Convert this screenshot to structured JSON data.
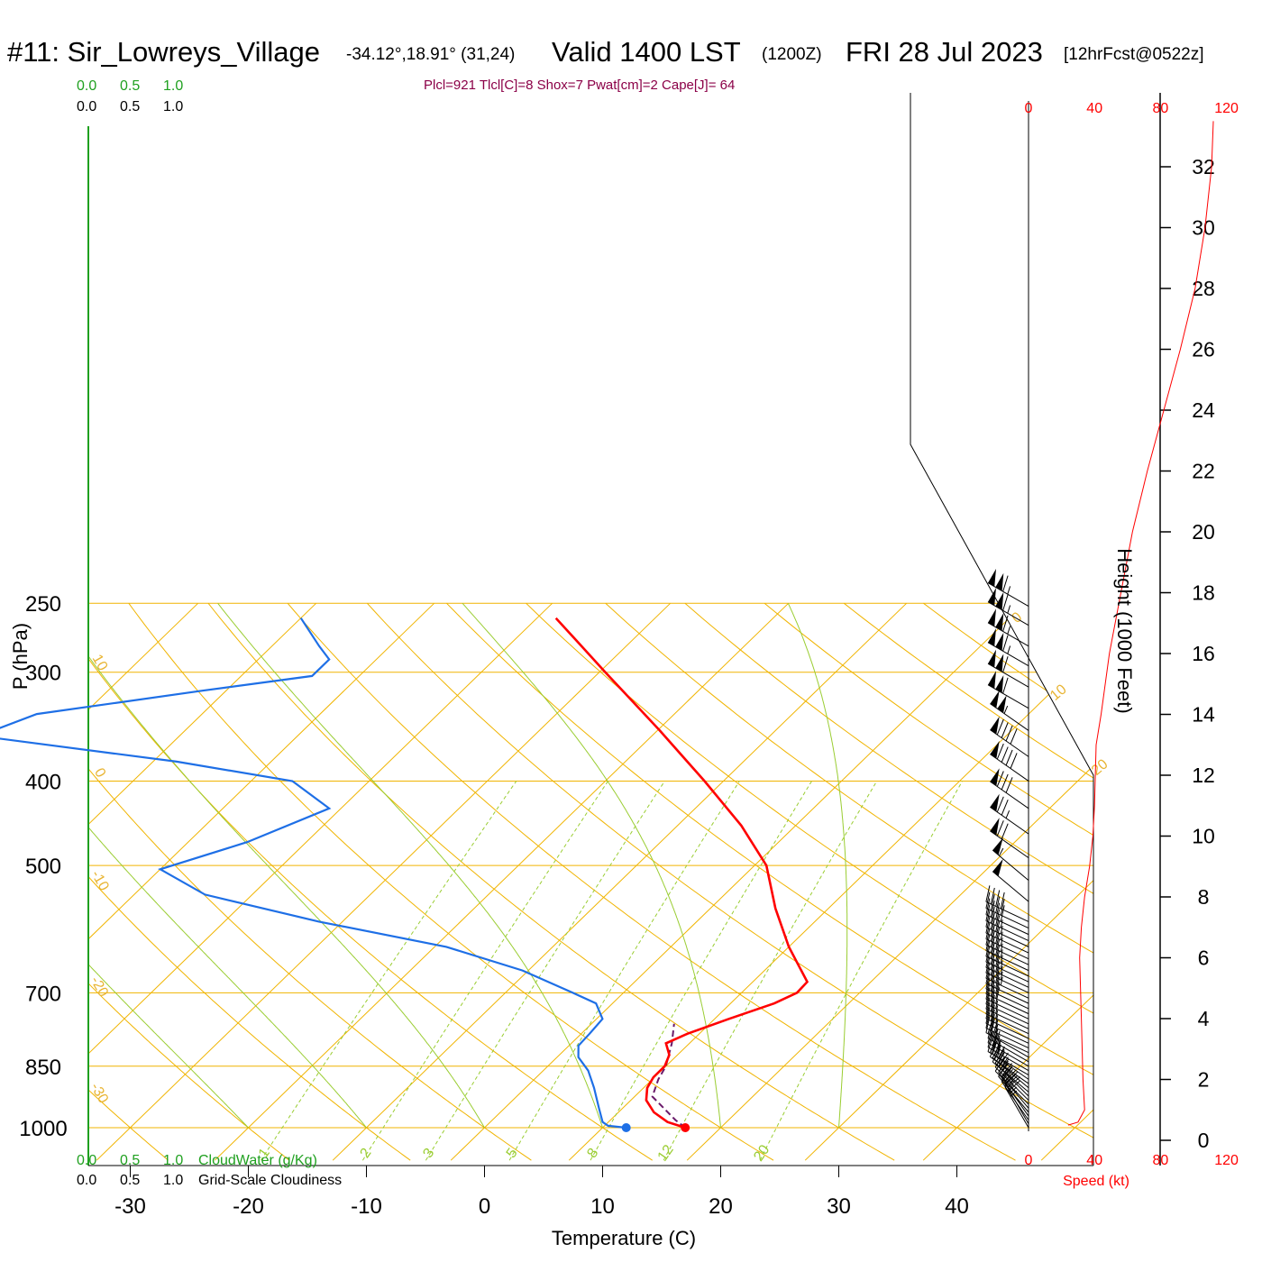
{
  "header": {
    "station": "#11: Sir_Lowreys_Village",
    "coords": "-34.12°,18.91° (31,24)",
    "valid": "Valid 1400 LST",
    "zulu": "(1200Z)",
    "date": "FRI 28 Jul 2023",
    "forecast": "[12hrFcst@0522z]",
    "params": "Plcl=921 Tlcl[C]=8 Shox=7 Pwat[cm]=2 Cape[J]= 64"
  },
  "legend": {
    "top_green": [
      "0.0",
      "0.5",
      "1.0"
    ],
    "top_black": [
      "0.0",
      "0.5",
      "1.0"
    ],
    "bottom_green": [
      "0.0",
      "0.5",
      "1.0"
    ],
    "bottom_black": [
      "0.0",
      "0.5",
      "1.0"
    ],
    "cloudwater_label": "CloudWater (g/Kg)",
    "cloudiness_label": "Grid-Scale Cloudiness"
  },
  "axes": {
    "x_title": "Temperature (C)",
    "y_title": "P (hPa)",
    "height_title": "Height (1000 Feet)",
    "speed_title": "Speed (kt)"
  },
  "colors": {
    "temperature": "#ff0000",
    "dewpoint": "#1e6fe6",
    "parcel": "#6a1a6a",
    "isotherm": "#f0b400",
    "dry_adiabat": "#f0b400",
    "moist_adiabat": "#9acd32",
    "mixing_ratio": "#9acd32",
    "wind_speed": "#ff0000"
  },
  "chart_data": {
    "type": "skew-t",
    "x_ticks": [
      -30,
      -20,
      -10,
      0,
      10,
      20,
      30,
      40
    ],
    "pressure_ticks": [
      250,
      300,
      400,
      500,
      700,
      850,
      1000
    ],
    "height_ticks_kft": [
      0,
      2,
      4,
      6,
      8,
      10,
      12,
      14,
      16,
      18,
      20,
      22,
      24,
      26,
      28,
      30,
      32
    ],
    "speed_ticks_kt": [
      0,
      40,
      80,
      120
    ],
    "isotherm_labels": [
      0,
      10,
      20,
      30
    ],
    "dry_adiabat_labels": [
      10,
      0,
      -10,
      -20,
      -30
    ],
    "mixing_ratio_labels": [
      "1",
      "2",
      "3",
      "5",
      "8",
      "12",
      "20"
    ],
    "temperature_profile": [
      {
        "p": 1000,
        "t": 17.0
      },
      {
        "p": 985,
        "t": 15.0
      },
      {
        "p": 960,
        "t": 13.0
      },
      {
        "p": 930,
        "t": 11.3
      },
      {
        "p": 900,
        "t": 10.3
      },
      {
        "p": 875,
        "t": 9.9
      },
      {
        "p": 850,
        "t": 9.9
      },
      {
        "p": 825,
        "t": 9.3
      },
      {
        "p": 800,
        "t": 8.0
      },
      {
        "p": 780,
        "t": 9.0
      },
      {
        "p": 750,
        "t": 11.2
      },
      {
        "p": 720,
        "t": 13.7
      },
      {
        "p": 700,
        "t": 14.7
      },
      {
        "p": 680,
        "t": 14.6
      },
      {
        "p": 620,
        "t": 10.0
      },
      {
        "p": 560,
        "t": 5.5
      },
      {
        "p": 500,
        "t": 1.0
      },
      {
        "p": 450,
        "t": -4.6
      },
      {
        "p": 400,
        "t": -11.6
      },
      {
        "p": 350,
        "t": -19.8
      },
      {
        "p": 300,
        "t": -29.5
      },
      {
        "p": 260,
        "t": -38.4
      }
    ],
    "dewpoint_profile": [
      {
        "p": 1000,
        "t": 12.0
      },
      {
        "p": 995,
        "t": 10.3
      },
      {
        "p": 985,
        "t": 9.5
      },
      {
        "p": 950,
        "t": 8.0
      },
      {
        "p": 900,
        "t": 5.8
      },
      {
        "p": 860,
        "t": 3.8
      },
      {
        "p": 830,
        "t": 1.8
      },
      {
        "p": 805,
        "t": 0.8
      },
      {
        "p": 780,
        "t": 0.7
      },
      {
        "p": 750,
        "t": 0.5
      },
      {
        "p": 720,
        "t": -1.4
      },
      {
        "p": 700,
        "t": -4.3
      },
      {
        "p": 660,
        "t": -10.5
      },
      {
        "p": 620,
        "t": -19.0
      },
      {
        "p": 580,
        "t": -32.0
      },
      {
        "p": 540,
        "t": -44.0
      },
      {
        "p": 505,
        "t": -50.0
      },
      {
        "p": 470,
        "t": -45.0
      },
      {
        "p": 430,
        "t": -41.0
      },
      {
        "p": 400,
        "t": -46.5
      },
      {
        "p": 380,
        "t": -58.0
      },
      {
        "p": 355,
        "t": -77.0
      },
      {
        "p": 335,
        "t": -74.0
      },
      {
        "p": 315,
        "t": -62.0
      },
      {
        "p": 303,
        "t": -54.0
      },
      {
        "p": 290,
        "t": -54.0
      },
      {
        "p": 280,
        "t": -56.0
      },
      {
        "p": 260,
        "t": -60.0
      }
    ],
    "parcel_profile": [
      {
        "p": 1000,
        "t": 17.0
      },
      {
        "p": 980,
        "t": 15.5
      },
      {
        "p": 950,
        "t": 13.5
      },
      {
        "p": 921,
        "t": 11.5
      },
      {
        "p": 880,
        "t": 10.5
      },
      {
        "p": 850,
        "t": 10.0
      },
      {
        "p": 800,
        "t": 8.5
      },
      {
        "p": 760,
        "t": 7.0
      }
    ],
    "wind_speed_profile_kt": [
      {
        "h": 0.5,
        "s": 24
      },
      {
        "h": 0.6,
        "s": 30
      },
      {
        "h": 1.0,
        "s": 34
      },
      {
        "h": 2.0,
        "s": 33
      },
      {
        "h": 4.0,
        "s": 32
      },
      {
        "h": 6.0,
        "s": 31
      },
      {
        "h": 7.0,
        "s": 32
      },
      {
        "h": 8.0,
        "s": 34
      },
      {
        "h": 9.0,
        "s": 37
      },
      {
        "h": 10.0,
        "s": 39
      },
      {
        "h": 11.0,
        "s": 40
      },
      {
        "h": 13.0,
        "s": 41
      },
      {
        "h": 14.0,
        "s": 44
      },
      {
        "h": 16.0,
        "s": 49
      },
      {
        "h": 18.0,
        "s": 56
      },
      {
        "h": 20.0,
        "s": 63
      },
      {
        "h": 22.0,
        "s": 72
      },
      {
        "h": 24.0,
        "s": 82
      },
      {
        "h": 26.0,
        "s": 92
      },
      {
        "h": 28.0,
        "s": 101
      },
      {
        "h": 30.0,
        "s": 107
      },
      {
        "h": 32.0,
        "s": 111
      },
      {
        "h": 33.5,
        "s": 112
      }
    ],
    "wind_barbs": [
      {
        "p": 1000,
        "dir": 330,
        "spd": 25
      },
      {
        "p": 990,
        "dir": 330,
        "spd": 25
      },
      {
        "p": 980,
        "dir": 325,
        "spd": 25
      },
      {
        "p": 970,
        "dir": 325,
        "spd": 25
      },
      {
        "p": 960,
        "dir": 320,
        "spd": 25
      },
      {
        "p": 950,
        "dir": 320,
        "spd": 25
      },
      {
        "p": 940,
        "dir": 315,
        "spd": 25
      },
      {
        "p": 930,
        "dir": 315,
        "spd": 25
      },
      {
        "p": 920,
        "dir": 315,
        "spd": 25
      },
      {
        "p": 910,
        "dir": 310,
        "spd": 25
      },
      {
        "p": 900,
        "dir": 310,
        "spd": 25
      },
      {
        "p": 890,
        "dir": 305,
        "spd": 25
      },
      {
        "p": 880,
        "dir": 305,
        "spd": 25
      },
      {
        "p": 870,
        "dir": 300,
        "spd": 25
      },
      {
        "p": 860,
        "dir": 300,
        "spd": 25
      },
      {
        "p": 850,
        "dir": 300,
        "spd": 25
      },
      {
        "p": 840,
        "dir": 300,
        "spd": 25
      },
      {
        "p": 830,
        "dir": 300,
        "spd": 25
      },
      {
        "p": 820,
        "dir": 295,
        "spd": 25
      },
      {
        "p": 810,
        "dir": 295,
        "spd": 25
      },
      {
        "p": 800,
        "dir": 295,
        "spd": 25
      },
      {
        "p": 790,
        "dir": 295,
        "spd": 25
      },
      {
        "p": 780,
        "dir": 295,
        "spd": 25
      },
      {
        "p": 770,
        "dir": 295,
        "spd": 25
      },
      {
        "p": 760,
        "dir": 295,
        "spd": 25
      },
      {
        "p": 750,
        "dir": 295,
        "spd": 30
      },
      {
        "p": 740,
        "dir": 295,
        "spd": 30
      },
      {
        "p": 730,
        "dir": 295,
        "spd": 30
      },
      {
        "p": 720,
        "dir": 295,
        "spd": 30
      },
      {
        "p": 710,
        "dir": 295,
        "spd": 35
      },
      {
        "p": 700,
        "dir": 295,
        "spd": 35
      },
      {
        "p": 690,
        "dir": 295,
        "spd": 35
      },
      {
        "p": 680,
        "dir": 295,
        "spd": 35
      },
      {
        "p": 670,
        "dir": 295,
        "spd": 35
      },
      {
        "p": 660,
        "dir": 295,
        "spd": 35
      },
      {
        "p": 650,
        "dir": 295,
        "spd": 35
      },
      {
        "p": 640,
        "dir": 295,
        "spd": 35
      },
      {
        "p": 630,
        "dir": 295,
        "spd": 35
      },
      {
        "p": 620,
        "dir": 295,
        "spd": 35
      },
      {
        "p": 610,
        "dir": 295,
        "spd": 35
      },
      {
        "p": 600,
        "dir": 295,
        "spd": 40
      },
      {
        "p": 590,
        "dir": 295,
        "spd": 40
      },
      {
        "p": 580,
        "dir": 295,
        "spd": 40
      },
      {
        "p": 550,
        "dir": 310,
        "spd": 50
      },
      {
        "p": 520,
        "dir": 310,
        "spd": 55
      },
      {
        "p": 490,
        "dir": 305,
        "spd": 70
      },
      {
        "p": 460,
        "dir": 305,
        "spd": 75
      },
      {
        "p": 430,
        "dir": 305,
        "spd": 80
      },
      {
        "p": 400,
        "dir": 305,
        "spd": 90
      },
      {
        "p": 375,
        "dir": 305,
        "spd": 90
      },
      {
        "p": 350,
        "dir": 305,
        "spd": 105
      },
      {
        "p": 330,
        "dir": 300,
        "spd": 110
      },
      {
        "p": 312,
        "dir": 300,
        "spd": 110
      },
      {
        "p": 295,
        "dir": 300,
        "spd": 115
      },
      {
        "p": 280,
        "dir": 300,
        "spd": 115
      },
      {
        "p": 265,
        "dir": 300,
        "spd": 115
      },
      {
        "p": 252,
        "dir": 300,
        "spd": 115
      }
    ]
  }
}
